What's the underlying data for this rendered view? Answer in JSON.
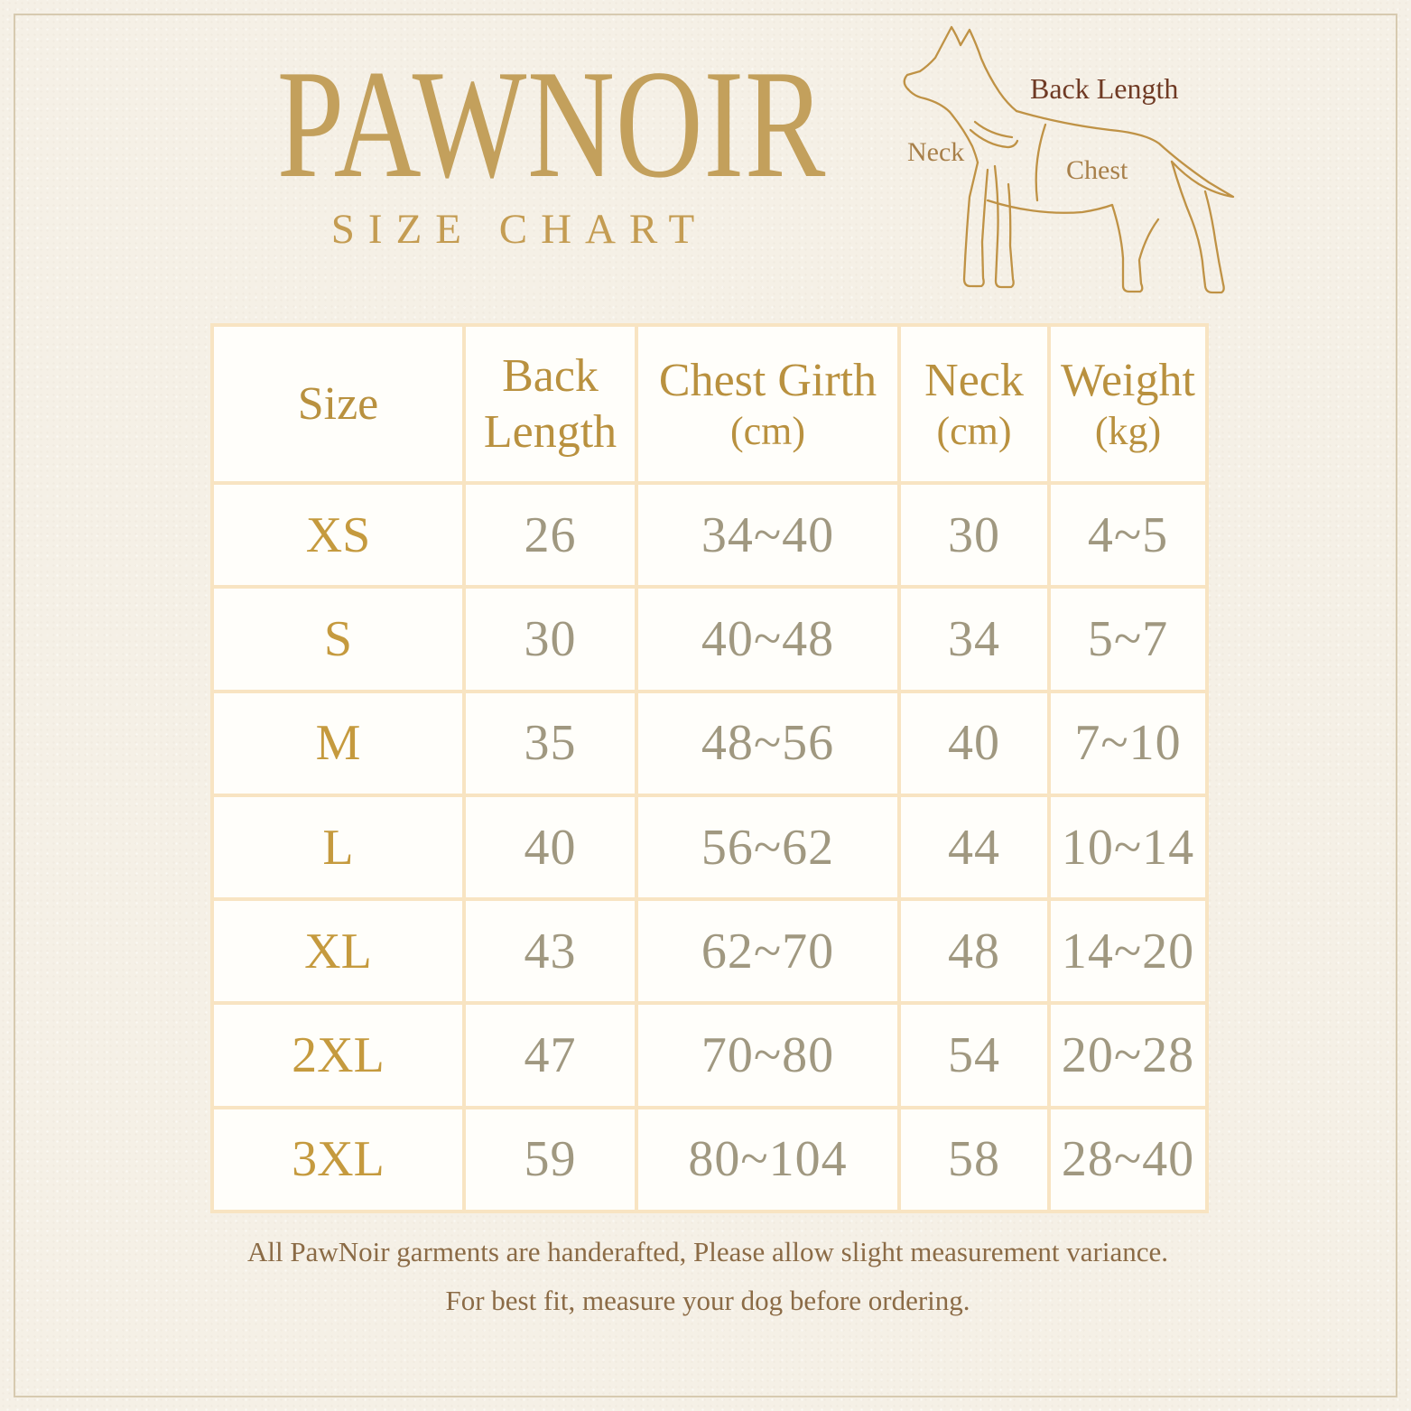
{
  "header": {
    "brand": "PAWNOIR",
    "subtitle": "SIZE CHART"
  },
  "diagram": {
    "back_length_label": "Back Length",
    "neck_label": "Neck",
    "chest_label": "Chest",
    "icon": "dog-outline-icon"
  },
  "table": {
    "columns": [
      {
        "label": "Size",
        "sub": ""
      },
      {
        "label": "Back Length",
        "sub": ""
      },
      {
        "label": "Chest Girth",
        "sub": "(cm)"
      },
      {
        "label": "Neck",
        "sub": "(cm)"
      },
      {
        "label": "Weight",
        "sub": "(kg)"
      }
    ],
    "rows": [
      {
        "size": "XS",
        "back_length": "26",
        "chest_girth": "34~40",
        "neck": "30",
        "weight": "4~5"
      },
      {
        "size": "S",
        "back_length": "30",
        "chest_girth": "40~48",
        "neck": "34",
        "weight": "5~7"
      },
      {
        "size": "M",
        "back_length": "35",
        "chest_girth": "48~56",
        "neck": "40",
        "weight": "7~10"
      },
      {
        "size": "L",
        "back_length": "40",
        "chest_girth": "56~62",
        "neck": "44",
        "weight": "10~14"
      },
      {
        "size": "XL",
        "back_length": "43",
        "chest_girth": "62~70",
        "neck": "48",
        "weight": "14~20"
      },
      {
        "size": "2XL",
        "back_length": "47",
        "chest_girth": "70~80",
        "neck": "54",
        "weight": "20~28"
      },
      {
        "size": "3XL",
        "back_length": "59",
        "chest_girth": "80~104",
        "neck": "58",
        "weight": "28~40"
      }
    ]
  },
  "footer": {
    "line1": "All PawNoir garments are handerafted, Please allow slight measurement variance.",
    "line2": "For best fit, measure your dog before ordering."
  },
  "colors": {
    "background": "#f5f0e6",
    "frame_line": "#d7cab0",
    "brand_gold": "#c3a05c",
    "subtitle_gold": "#c49c52",
    "table_border": "#f8e4c2",
    "cell_background": "#fffefa",
    "header_text": "#b9913f",
    "size_label": "#c59a3e",
    "value_text": "#a09880",
    "footer_text": "#8b6b46",
    "dog_outline": "#bf9245",
    "back_length_label": "#6f3a24",
    "neck_chest_label": "#a8804a"
  }
}
